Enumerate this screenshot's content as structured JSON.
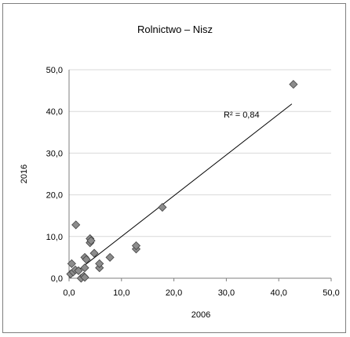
{
  "chart_data": {
    "type": "scatter",
    "title": "Rolnictwo – Nisz",
    "xlabel": "2006",
    "ylabel": "2016",
    "xlim": [
      0,
      50
    ],
    "ylim": [
      0,
      50
    ],
    "x_ticks": [
      "0,0",
      "10,0",
      "20,0",
      "30,0",
      "40,0",
      "50,0"
    ],
    "y_ticks": [
      "0,0",
      "10,0",
      "20,0",
      "30,0",
      "40,0",
      "50,0"
    ],
    "grid": "horizontal",
    "marker_color": "#8c8c8c",
    "points": [
      [
        0.3,
        1.0
      ],
      [
        0.5,
        3.5
      ],
      [
        0.8,
        1.5
      ],
      [
        1.2,
        2.0
      ],
      [
        1.3,
        12.8
      ],
      [
        1.8,
        1.8
      ],
      [
        2.3,
        0.0
      ],
      [
        2.8,
        0.5
      ],
      [
        3.0,
        2.5
      ],
      [
        3.0,
        5.0
      ],
      [
        3.3,
        4.5
      ],
      [
        3.0,
        0.2
      ],
      [
        4.0,
        9.5
      ],
      [
        4.0,
        8.5
      ],
      [
        4.2,
        9.0
      ],
      [
        4.8,
        6.0
      ],
      [
        5.8,
        2.5
      ],
      [
        5.8,
        3.5
      ],
      [
        7.8,
        5.0
      ],
      [
        12.8,
        7.0
      ],
      [
        12.8,
        7.8
      ],
      [
        17.8,
        17.0
      ],
      [
        42.8,
        46.5
      ]
    ],
    "trendline": {
      "x": [
        0,
        42.5
      ],
      "y": [
        0.2,
        41.8
      ]
    },
    "annotation": {
      "text": "R² = 0,84",
      "x": 29.5,
      "y": 38.5
    }
  }
}
